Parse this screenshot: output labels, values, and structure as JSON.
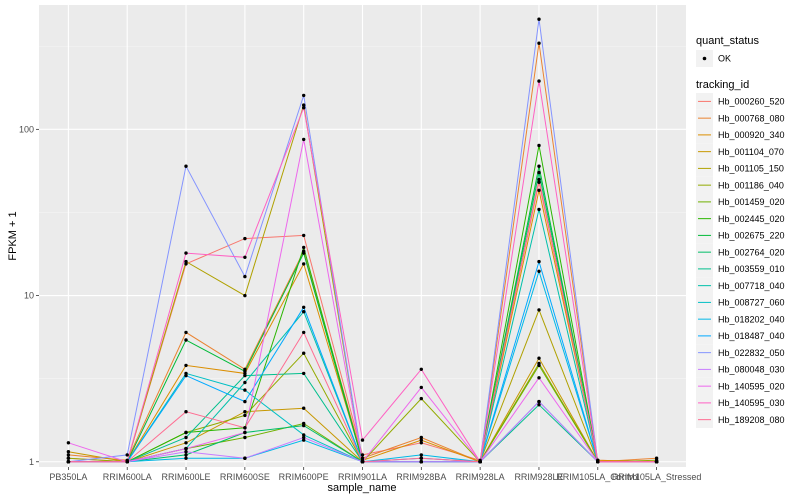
{
  "chart_data": {
    "type": "line",
    "title": "",
    "xlabel": "sample_name",
    "ylabel": "FPKM + 1",
    "y_scale": "log10",
    "ylim": [
      0.93,
      560
    ],
    "y_ticks": [
      1,
      10,
      100
    ],
    "y_tick_labels": [
      "1",
      "10",
      "100"
    ],
    "grid": true,
    "legend_position": "right",
    "categories": [
      "PB350LA",
      "RRIM600LA",
      "RRIM600LE",
      "RRIM600SE",
      "RRIM600PE",
      "RRIM901LA",
      "RRIM928BA",
      "RRIM928LA",
      "RRIM928LE",
      "RRIM105LA_Control",
      "RRIM105LA_Stressed"
    ],
    "point_legend": {
      "title": "quant_status",
      "entries": [
        "OK"
      ]
    },
    "line_legend_title": "tracking_id",
    "series": [
      {
        "name": "Hb_000260_520",
        "color": "#F8766D",
        "values": [
          1.05,
          1.0,
          15.5,
          22.0,
          23.0,
          1.1,
          1.3,
          1.02,
          48,
          1.02,
          1.0
        ]
      },
      {
        "name": "Hb_000768_080",
        "color": "#EA8331",
        "values": [
          1.1,
          1.02,
          6.0,
          3.6,
          18.5,
          1.05,
          1.4,
          1.0,
          330,
          1.0,
          1.05
        ]
      },
      {
        "name": "Hb_000920_340",
        "color": "#DB8E00",
        "values": [
          1.0,
          1.0,
          3.8,
          3.4,
          15.5,
          1.02,
          1.35,
          1.0,
          43,
          1.02,
          1.0
        ]
      },
      {
        "name": "Hb_001104_070",
        "color": "#C79800",
        "values": [
          1.15,
          1.0,
          1.3,
          2.0,
          2.1,
          1.0,
          1.0,
          1.0,
          4.2,
          1.0,
          1.0
        ]
      },
      {
        "name": "Hb_001105_150",
        "color": "#B0A100",
        "values": [
          1.0,
          1.0,
          16.0,
          10.0,
          140,
          1.0,
          1.0,
          1.0,
          8.2,
          1.0,
          1.0
        ]
      },
      {
        "name": "Hb_001186_040",
        "color": "#93AA00",
        "values": [
          1.05,
          1.0,
          1.5,
          1.9,
          4.5,
          1.0,
          2.4,
          1.0,
          3.9,
          1.0,
          1.02
        ]
      },
      {
        "name": "Hb_001459_020",
        "color": "#6FB000",
        "values": [
          1.0,
          1.0,
          1.2,
          1.4,
          1.7,
          1.0,
          1.0,
          1.0,
          3.8,
          1.0,
          1.0
        ]
      },
      {
        "name": "Hb_002445_020",
        "color": "#2AB600",
        "values": [
          1.0,
          1.0,
          1.5,
          1.6,
          19.5,
          1.0,
          1.0,
          1.0,
          80,
          1.0,
          1.0
        ]
      },
      {
        "name": "Hb_002675_220",
        "color": "#00BA38",
        "values": [
          1.0,
          1.0,
          5.4,
          3.5,
          18.0,
          1.0,
          1.0,
          1.0,
          60,
          1.0,
          1.0
        ]
      },
      {
        "name": "Hb_002764_020",
        "color": "#00BE67",
        "values": [
          1.0,
          1.0,
          1.1,
          1.5,
          1.65,
          1.0,
          1.0,
          1.0,
          55,
          1.0,
          1.0
        ]
      },
      {
        "name": "Hb_003559_010",
        "color": "#00BF8C",
        "values": [
          1.0,
          1.0,
          1.4,
          3.3,
          3.4,
          1.0,
          1.0,
          1.0,
          2.2,
          1.0,
          1.0
        ]
      },
      {
        "name": "Hb_007718_040",
        "color": "#00C0AA",
        "values": [
          1.0,
          1.0,
          1.2,
          3.0,
          8.0,
          1.0,
          1.0,
          1.0,
          33,
          1.0,
          1.0
        ]
      },
      {
        "name": "Hb_008727_060",
        "color": "#00BFC4",
        "values": [
          1.0,
          1.0,
          3.4,
          2.7,
          1.45,
          1.0,
          1.0,
          1.0,
          2.3,
          1.0,
          1.0
        ]
      },
      {
        "name": "Hb_018202_040",
        "color": "#00B8E7",
        "values": [
          1.0,
          1.0,
          1.05,
          1.05,
          1.35,
          1.0,
          1.1,
          1.0,
          14,
          1.0,
          1.0
        ]
      },
      {
        "name": "Hb_018487_040",
        "color": "#00A9FF",
        "values": [
          1.0,
          1.0,
          3.3,
          2.3,
          8.5,
          1.0,
          1.05,
          1.0,
          16,
          1.0,
          1.0
        ]
      },
      {
        "name": "Hb_022832_050",
        "color": "#8494FF",
        "values": [
          1.0,
          1.1,
          60,
          13,
          160,
          1.0,
          1.0,
          1.0,
          460,
          1.0,
          1.0
        ]
      },
      {
        "name": "Hb_080048_030",
        "color": "#C77CFF",
        "values": [
          1.0,
          1.0,
          1.15,
          1.05,
          1.4,
          1.0,
          1.0,
          1.0,
          2.3,
          1.0,
          1.0
        ]
      },
      {
        "name": "Hb_140595_020",
        "color": "#ED68ED",
        "values": [
          1.3,
          1.0,
          1.2,
          1.5,
          87,
          1.0,
          2.8,
          1.0,
          3.2,
          1.0,
          1.0
        ]
      },
      {
        "name": "Hb_140595_030",
        "color": "#FF61C3",
        "values": [
          1.0,
          1.0,
          18.0,
          17.0,
          135,
          1.35,
          3.6,
          1.0,
          195,
          1.0,
          1.0
        ]
      },
      {
        "name": "Hb_189208_080",
        "color": "#FF6C91",
        "values": [
          1.0,
          1.0,
          2.0,
          1.6,
          6.0,
          1.0,
          1.05,
          1.0,
          50,
          1.0,
          1.0
        ]
      }
    ]
  }
}
